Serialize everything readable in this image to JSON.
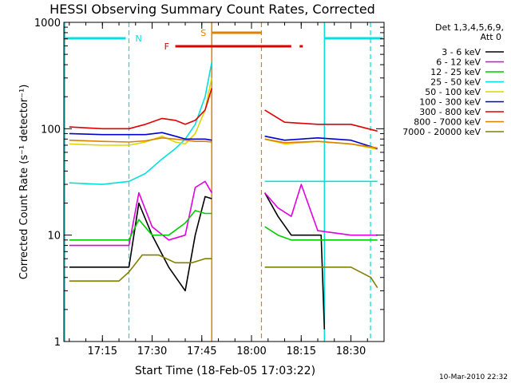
{
  "chart_data": {
    "type": "line",
    "title": "HESSI Observing Summary Count Rates, Corrected",
    "xlabel": "Start Time (18-Feb-05 17:03:22)",
    "ylabel": "Corrected Count Rate (s⁻¹ detector⁻¹)",
    "y_scale": "log",
    "ylim": [
      1,
      1000
    ],
    "xlim": [
      "17:03:22",
      "18:40:00"
    ],
    "x_ticks": [
      "17:15",
      "17:30",
      "17:45",
      "18:00",
      "18:15",
      "18:30"
    ],
    "y_ticks": [
      "1",
      "10",
      "100",
      "1000"
    ],
    "footer": "10-Mar-2010 22:32",
    "legend": {
      "position": "right",
      "header": [
        "Det 1,3,4,5,6,9,",
        "Att 0"
      ]
    },
    "markers": {
      "n_label": "N",
      "s_label": "S",
      "f_label": "F",
      "night_start": "17:23",
      "night_end": "18:22",
      "saa_start": "17:48",
      "saa_end": "18:03",
      "flare_start": "17:37",
      "flare_end": "18:12",
      "flare_point": "18:15"
    },
    "gaps": [
      [
        "17:48",
        "18:03"
      ]
    ],
    "series": [
      {
        "name": "3 - 6 keV",
        "color": "#000000",
        "x": [
          "17:05",
          "17:20",
          "17:23",
          "17:26",
          "17:30",
          "17:35",
          "17:40",
          "17:43",
          "17:46",
          "17:48",
          "18:04",
          "18:08",
          "18:12",
          "18:15",
          "18:18",
          "18:21",
          "18:22"
        ],
        "y": [
          5,
          5,
          5,
          20,
          10,
          5,
          3,
          10,
          23,
          22,
          25,
          15,
          10,
          10,
          10,
          10,
          1.3
        ]
      },
      {
        "name": "6 - 12 keV",
        "color": "#e000e0",
        "x": [
          "17:05",
          "17:20",
          "17:23",
          "17:26",
          "17:30",
          "17:35",
          "17:40",
          "17:43",
          "17:46",
          "17:48",
          "18:04",
          "18:08",
          "18:12",
          "18:15",
          "18:20",
          "18:30",
          "18:38"
        ],
        "y": [
          8,
          8,
          8,
          25,
          12,
          9,
          10,
          28,
          32,
          25,
          25,
          18,
          15,
          30,
          11,
          10,
          10
        ]
      },
      {
        "name": "12 - 25 keV",
        "color": "#00cc00",
        "x": [
          "17:05",
          "17:20",
          "17:23",
          "17:26",
          "17:30",
          "17:35",
          "17:40",
          "17:43",
          "17:46",
          "17:48",
          "18:04",
          "18:08",
          "18:12",
          "18:15",
          "18:20",
          "18:30",
          "18:38"
        ],
        "y": [
          9,
          9,
          9,
          14,
          10,
          10,
          13,
          17,
          16,
          16,
          12,
          10,
          9,
          9,
          9,
          9,
          9
        ]
      },
      {
        "name": "25 - 50 keV",
        "color": "#00e0e0",
        "x": [
          "17:05",
          "17:15",
          "17:23",
          "17:28",
          "17:33",
          "17:37",
          "17:40",
          "17:43",
          "17:46",
          "17:48",
          "18:04",
          "18:10",
          "18:20",
          "18:30",
          "18:38"
        ],
        "y": [
          31,
          30,
          32,
          38,
          52,
          65,
          80,
          110,
          200,
          420,
          32,
          32,
          32,
          32,
          32
        ]
      },
      {
        "name": "50 - 100 keV",
        "color": "#d8d800",
        "x": [
          "17:05",
          "17:15",
          "17:23",
          "17:28",
          "17:33",
          "17:37",
          "17:40",
          "17:43",
          "17:46",
          "17:48",
          "18:04",
          "18:10",
          "18:20",
          "18:30",
          "18:38"
        ],
        "y": [
          72,
          70,
          70,
          75,
          85,
          75,
          72,
          90,
          150,
          300,
          80,
          72,
          76,
          72,
          64
        ]
      },
      {
        "name": "100 - 300 keV",
        "color": "#0000cc",
        "x": [
          "17:05",
          "17:15",
          "17:23",
          "17:28",
          "17:33",
          "17:37",
          "17:40",
          "17:43",
          "17:46",
          "17:48",
          "18:04",
          "18:10",
          "18:20",
          "18:30",
          "18:38"
        ],
        "y": [
          90,
          88,
          88,
          88,
          92,
          85,
          80,
          80,
          80,
          78,
          85,
          78,
          82,
          78,
          65
        ]
      },
      {
        "name": "300 - 800 keV",
        "color": "#e00000",
        "x": [
          "17:05",
          "17:15",
          "17:23",
          "17:28",
          "17:33",
          "17:37",
          "17:40",
          "17:43",
          "17:46",
          "17:48",
          "18:04",
          "18:10",
          "18:20",
          "18:30",
          "18:38"
        ],
        "y": [
          104,
          100,
          100,
          110,
          125,
          120,
          110,
          120,
          150,
          240,
          150,
          115,
          110,
          110,
          95
        ]
      },
      {
        "name": "800 - 7000 keV",
        "color": "#e08000",
        "x": [
          "17:05",
          "17:15",
          "17:23",
          "17:28",
          "17:33",
          "17:37",
          "17:40",
          "17:43",
          "17:46",
          "17:48",
          "18:04",
          "18:10",
          "18:20",
          "18:30",
          "18:38"
        ],
        "y": [
          78,
          76,
          75,
          77,
          82,
          80,
          78,
          76,
          76,
          75,
          80,
          74,
          76,
          72,
          66
        ]
      },
      {
        "name": "7000 - 20000 keV",
        "color": "#808000",
        "x": [
          "17:05",
          "17:20",
          "17:23",
          "17:27",
          "17:32",
          "17:37",
          "17:42",
          "17:46",
          "17:48",
          "18:04",
          "18:08",
          "18:15",
          "18:22",
          "18:30",
          "18:36",
          "18:38"
        ],
        "y": [
          3.7,
          3.7,
          4.5,
          6.5,
          6.5,
          5.5,
          5.5,
          6,
          6,
          5,
          5,
          5,
          5,
          5,
          4,
          3.2
        ]
      }
    ]
  }
}
